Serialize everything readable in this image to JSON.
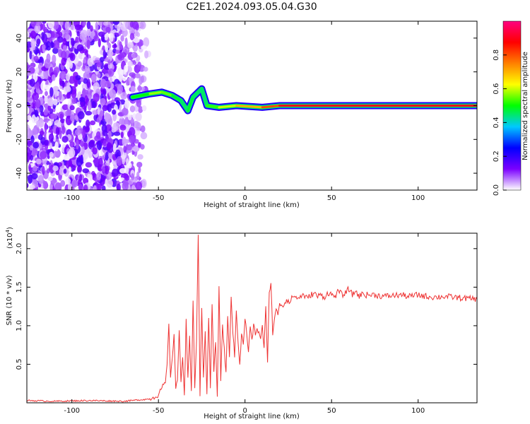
{
  "title": "C2E1.2024.093.05.04.G30",
  "chart_data": [
    {
      "type": "heatmap",
      "xlabel": "Height of straight line (km)",
      "ylabel": "Frequency (Hz)",
      "xlim": [
        -126,
        134
      ],
      "ylim": [
        -50,
        50
      ],
      "xticks": [
        -100,
        -50,
        0,
        50,
        100
      ],
      "yticks": [
        -40,
        -20,
        0,
        20,
        40
      ],
      "colorbar": {
        "label": "Normalized spectral amplitude",
        "range": [
          0,
          1
        ],
        "ticks": [
          0.0,
          0.2,
          0.4,
          0.6,
          0.8
        ],
        "colors": [
          "#ffffff",
          "#7b00ff",
          "#0000ff",
          "#00c8ff",
          "#00ff00",
          "#ffff00",
          "#ff8000",
          "#ff0000",
          "#ff0080"
        ]
      },
      "noise_region_x": [
        -126,
        -55
      ],
      "ridge": [
        {
          "x": -65,
          "y": 5,
          "amp": 0.45
        },
        {
          "x": -55,
          "y": 7,
          "amp": 0.55
        },
        {
          "x": -48,
          "y": 8,
          "amp": 0.6
        },
        {
          "x": -42,
          "y": 6,
          "amp": 0.5
        },
        {
          "x": -37,
          "y": 3,
          "amp": 0.45
        },
        {
          "x": -33,
          "y": -3,
          "amp": 0.45
        },
        {
          "x": -30,
          "y": 5,
          "amp": 0.5
        },
        {
          "x": -25,
          "y": 10,
          "amp": 0.4
        },
        {
          "x": -22,
          "y": 0,
          "amp": 0.5
        },
        {
          "x": -15,
          "y": -1,
          "amp": 0.55
        },
        {
          "x": -5,
          "y": 0,
          "amp": 0.65
        },
        {
          "x": 10,
          "y": -1,
          "amp": 0.75
        },
        {
          "x": 20,
          "y": 0,
          "amp": 0.85
        },
        {
          "x": 134,
          "y": 0,
          "amp": 0.95
        }
      ]
    },
    {
      "type": "line",
      "xlabel": "Height of straight line (km)",
      "ylabel": "SNR (10 * v/v)",
      "y_multiplier": "(x10",
      "y_multiplier_exp": "4",
      "y_multiplier_close": ")",
      "xlim": [
        -126,
        134
      ],
      "ylim": [
        0,
        2.2
      ],
      "xticks": [
        -100,
        -50,
        0,
        50,
        100
      ],
      "yticks": [
        0.5,
        1.0,
        1.5,
        2.0
      ],
      "color": "#ee3333",
      "series": [
        {
          "x": [
            -126,
            -110,
            -90,
            -70,
            -60,
            -55,
            -52,
            -50,
            -48,
            -46,
            -45,
            -44,
            -43,
            -42,
            -41,
            -40,
            -39,
            -38,
            -37,
            -36,
            -35,
            -34,
            -33,
            -32,
            -31,
            -30,
            -29,
            -28,
            -27,
            -26,
            -25,
            -24,
            -23,
            -22,
            -21,
            -20,
            -19,
            -18,
            -17,
            -16,
            -15,
            -14,
            -13,
            -12,
            -11,
            -10,
            -9,
            -8,
            -7,
            -6,
            -5,
            -4,
            -3,
            -2,
            -1,
            0,
            1,
            2,
            3,
            4,
            5,
            6,
            7,
            8,
            9,
            10,
            11,
            12,
            13,
            14,
            15,
            16,
            17,
            18,
            19,
            20,
            22,
            24,
            26,
            28,
            30,
            32,
            34,
            36,
            38,
            40,
            42,
            44,
            46,
            48,
            50,
            52,
            54,
            56,
            58,
            60,
            62,
            64,
            66,
            68,
            70,
            75,
            80,
            85,
            90,
            95,
            100,
            105,
            110,
            115,
            120,
            125,
            130,
            134
          ],
          "y": [
            0.03,
            0.02,
            0.03,
            0.02,
            0.04,
            0.05,
            0.08,
            0.1,
            0.2,
            0.25,
            0.5,
            1.0,
            0.35,
            0.55,
            0.9,
            0.2,
            0.3,
            0.95,
            0.25,
            0.6,
            0.1,
            1.1,
            0.3,
            0.9,
            0.15,
            1.3,
            0.2,
            0.8,
            2.2,
            0.1,
            1.2,
            0.3,
            0.9,
            0.1,
            1.1,
            0.2,
            1.3,
            0.4,
            0.8,
            0.05,
            1.5,
            0.3,
            1.0,
            0.7,
            0.4,
            1.1,
            0.6,
            1.4,
            0.9,
            0.6,
            1.2,
            0.8,
            0.5,
            0.9,
            0.75,
            1.1,
            0.9,
            0.65,
            1.0,
            0.8,
            1.0,
            0.9,
            0.95,
            0.9,
            0.85,
            1.0,
            0.7,
            1.25,
            0.5,
            1.45,
            1.55,
            0.9,
            1.1,
            1.2,
            1.15,
            1.3,
            1.25,
            1.35,
            1.3,
            1.4,
            1.35,
            1.38,
            1.4,
            1.35,
            1.4,
            1.42,
            1.38,
            1.4,
            1.37,
            1.43,
            1.4,
            1.38,
            1.45,
            1.4,
            1.42,
            1.48,
            1.4,
            1.45,
            1.38,
            1.42,
            1.4,
            1.4,
            1.38,
            1.39,
            1.4,
            1.38,
            1.4,
            1.38,
            1.37,
            1.38,
            1.37,
            1.36,
            1.35,
            1.35
          ]
        }
      ]
    }
  ]
}
